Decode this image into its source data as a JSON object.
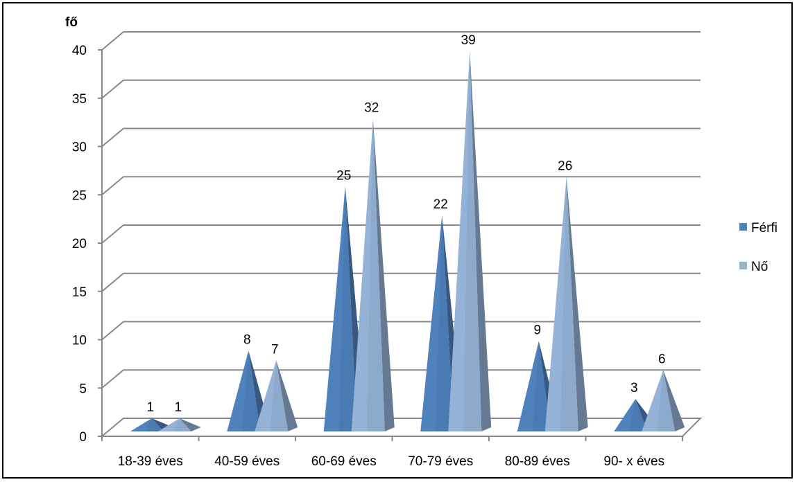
{
  "chart_data": {
    "type": "bar",
    "subtype": "3d-pyramid",
    "ylabel": "fő",
    "ylim": [
      0,
      40
    ],
    "yticks": [
      "0",
      "5",
      "10",
      "15",
      "20",
      "25",
      "30",
      "35",
      "40"
    ],
    "categories": [
      "18-39 éves",
      "40-59 éves",
      "60-69 éves",
      "70-79 éves",
      "80-89 éves",
      "90- x éves"
    ],
    "series": [
      {
        "name": "Férfi",
        "values": [
          1,
          8,
          25,
          22,
          9,
          3
        ],
        "color": "#4F81BD"
      },
      {
        "name": "Nő",
        "values": [
          1,
          7,
          32,
          39,
          26,
          6
        ],
        "color": "#95B3D7"
      }
    ],
    "grid": true,
    "legend": "right"
  }
}
